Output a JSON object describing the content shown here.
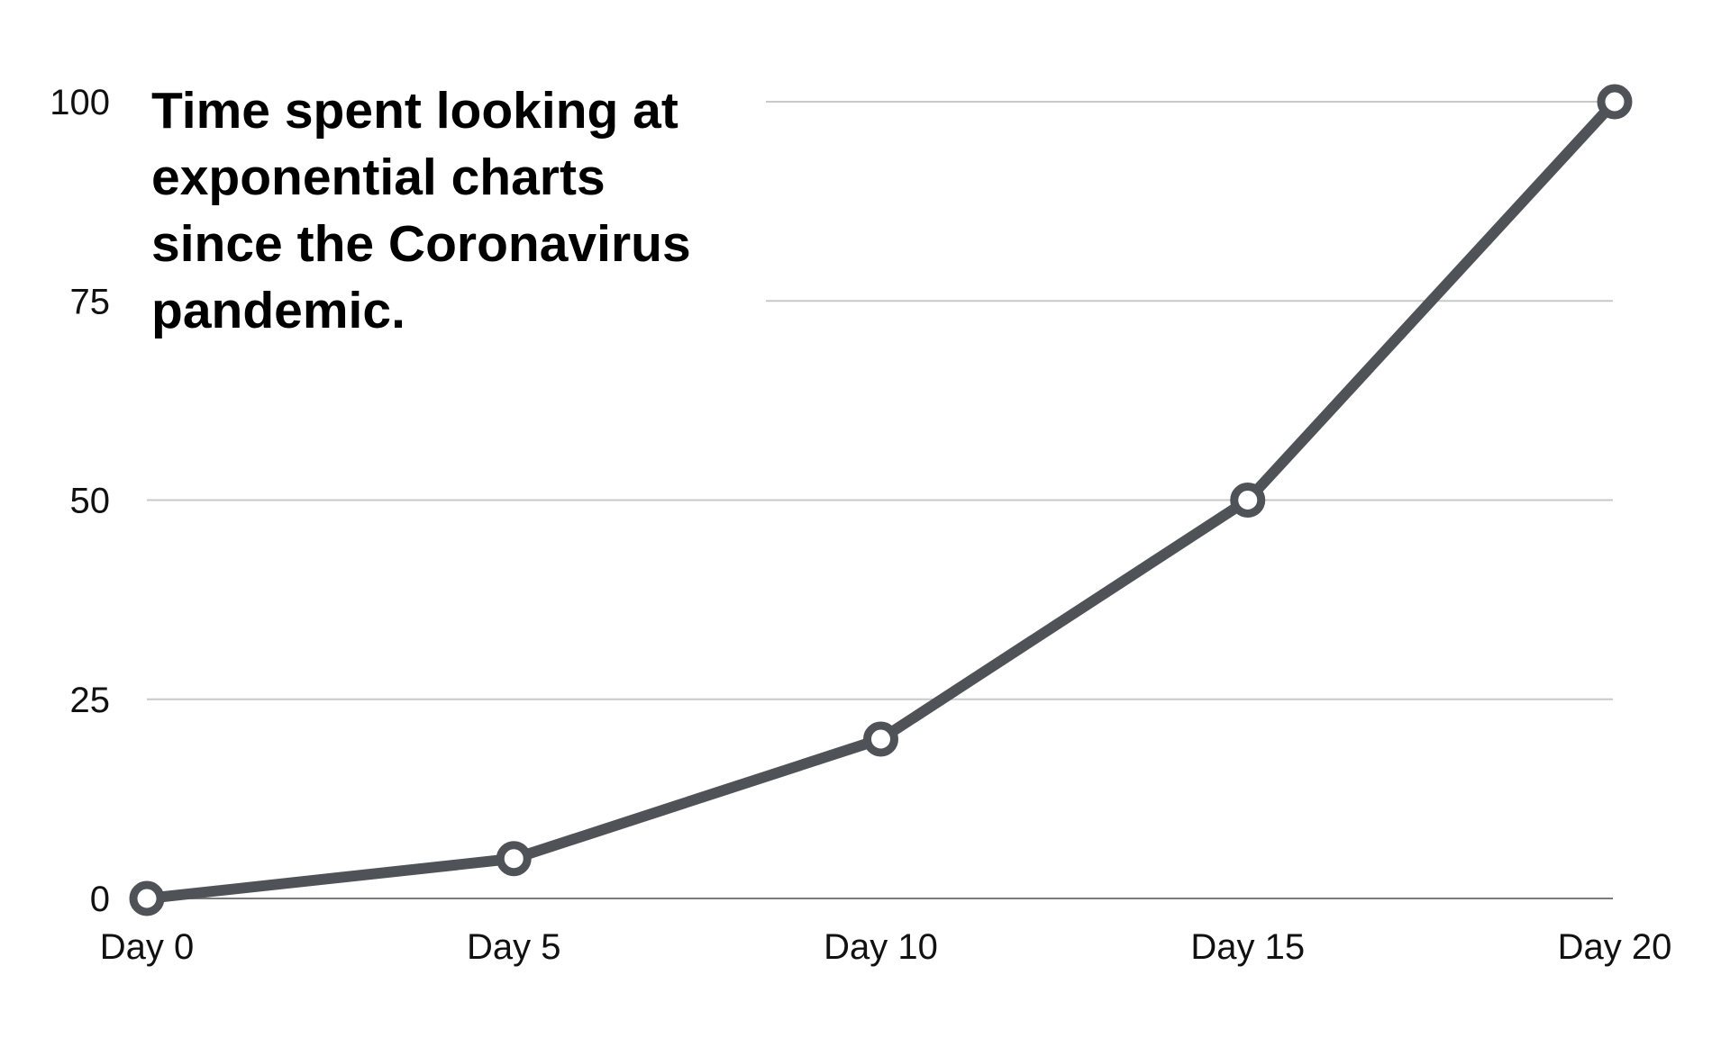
{
  "chart_data": {
    "type": "line",
    "title_lines": [
      "Time spent looking at",
      "exponential charts",
      "since the Coronavirus",
      "pandemic."
    ],
    "categories": [
      "Day 0",
      "Day 5",
      "Day 10",
      "Day 15",
      "Day 20"
    ],
    "series": [
      {
        "values": [
          0,
          5,
          20,
          50,
          100
        ],
        "color": "#4f5357"
      }
    ],
    "y_ticks": [
      "0",
      "25",
      "50",
      "75",
      "100"
    ],
    "ylim": [
      0,
      100
    ],
    "grid": true,
    "legend": "none"
  }
}
